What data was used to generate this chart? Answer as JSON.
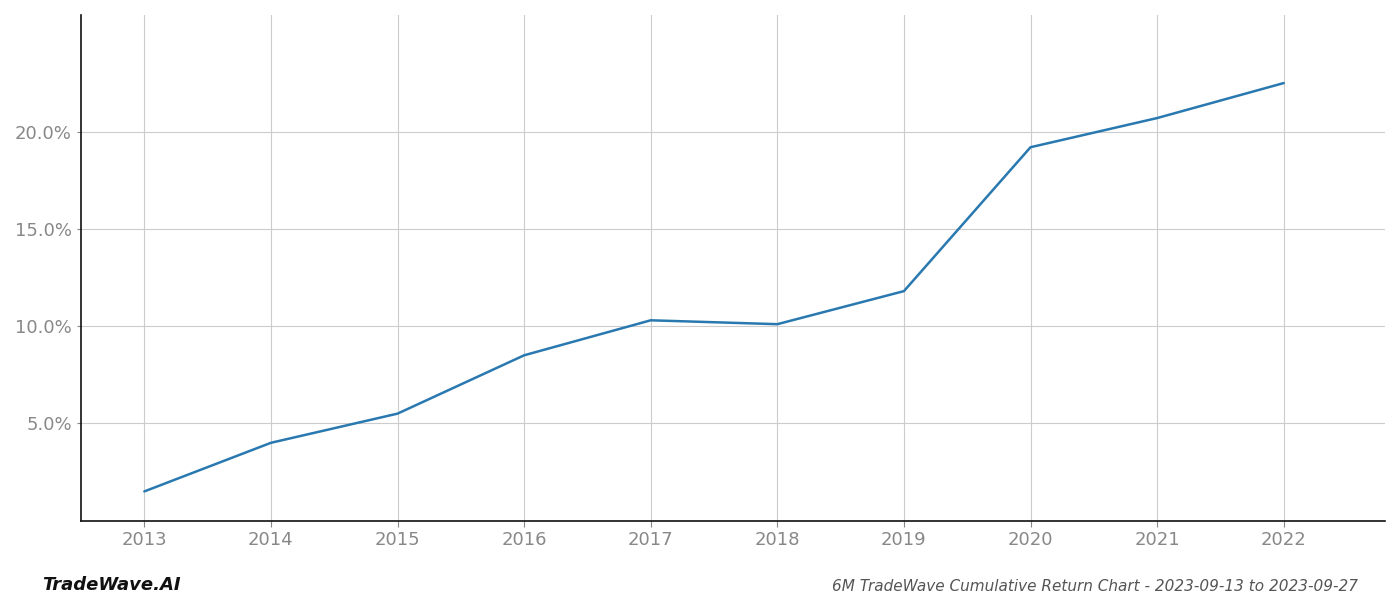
{
  "x": [
    2013,
    2014,
    2015,
    2016,
    2017,
    2018,
    2019,
    2020,
    2021,
    2022
  ],
  "y": [
    1.5,
    4.0,
    5.5,
    8.5,
    10.3,
    10.1,
    11.8,
    19.2,
    20.7,
    22.5
  ],
  "line_color": "#2979b0",
  "background_color": "#ffffff",
  "grid_color": "#cccccc",
  "ylabel_color": "#888888",
  "xlabel_color": "#888888",
  "title": "6M TradeWave Cumulative Return Chart - 2023-09-13 to 2023-09-27",
  "watermark": "TradeWave.AI",
  "xlim": [
    2012.5,
    2022.8
  ],
  "ylim_min": 0,
  "ylim_max": 26,
  "yticks": [
    5.0,
    10.0,
    15.0,
    20.0
  ],
  "xticks": [
    2013,
    2014,
    2015,
    2016,
    2017,
    2018,
    2019,
    2020,
    2021,
    2022
  ],
  "line_width": 1.8,
  "title_fontsize": 11,
  "tick_fontsize": 13,
  "watermark_fontsize": 13
}
